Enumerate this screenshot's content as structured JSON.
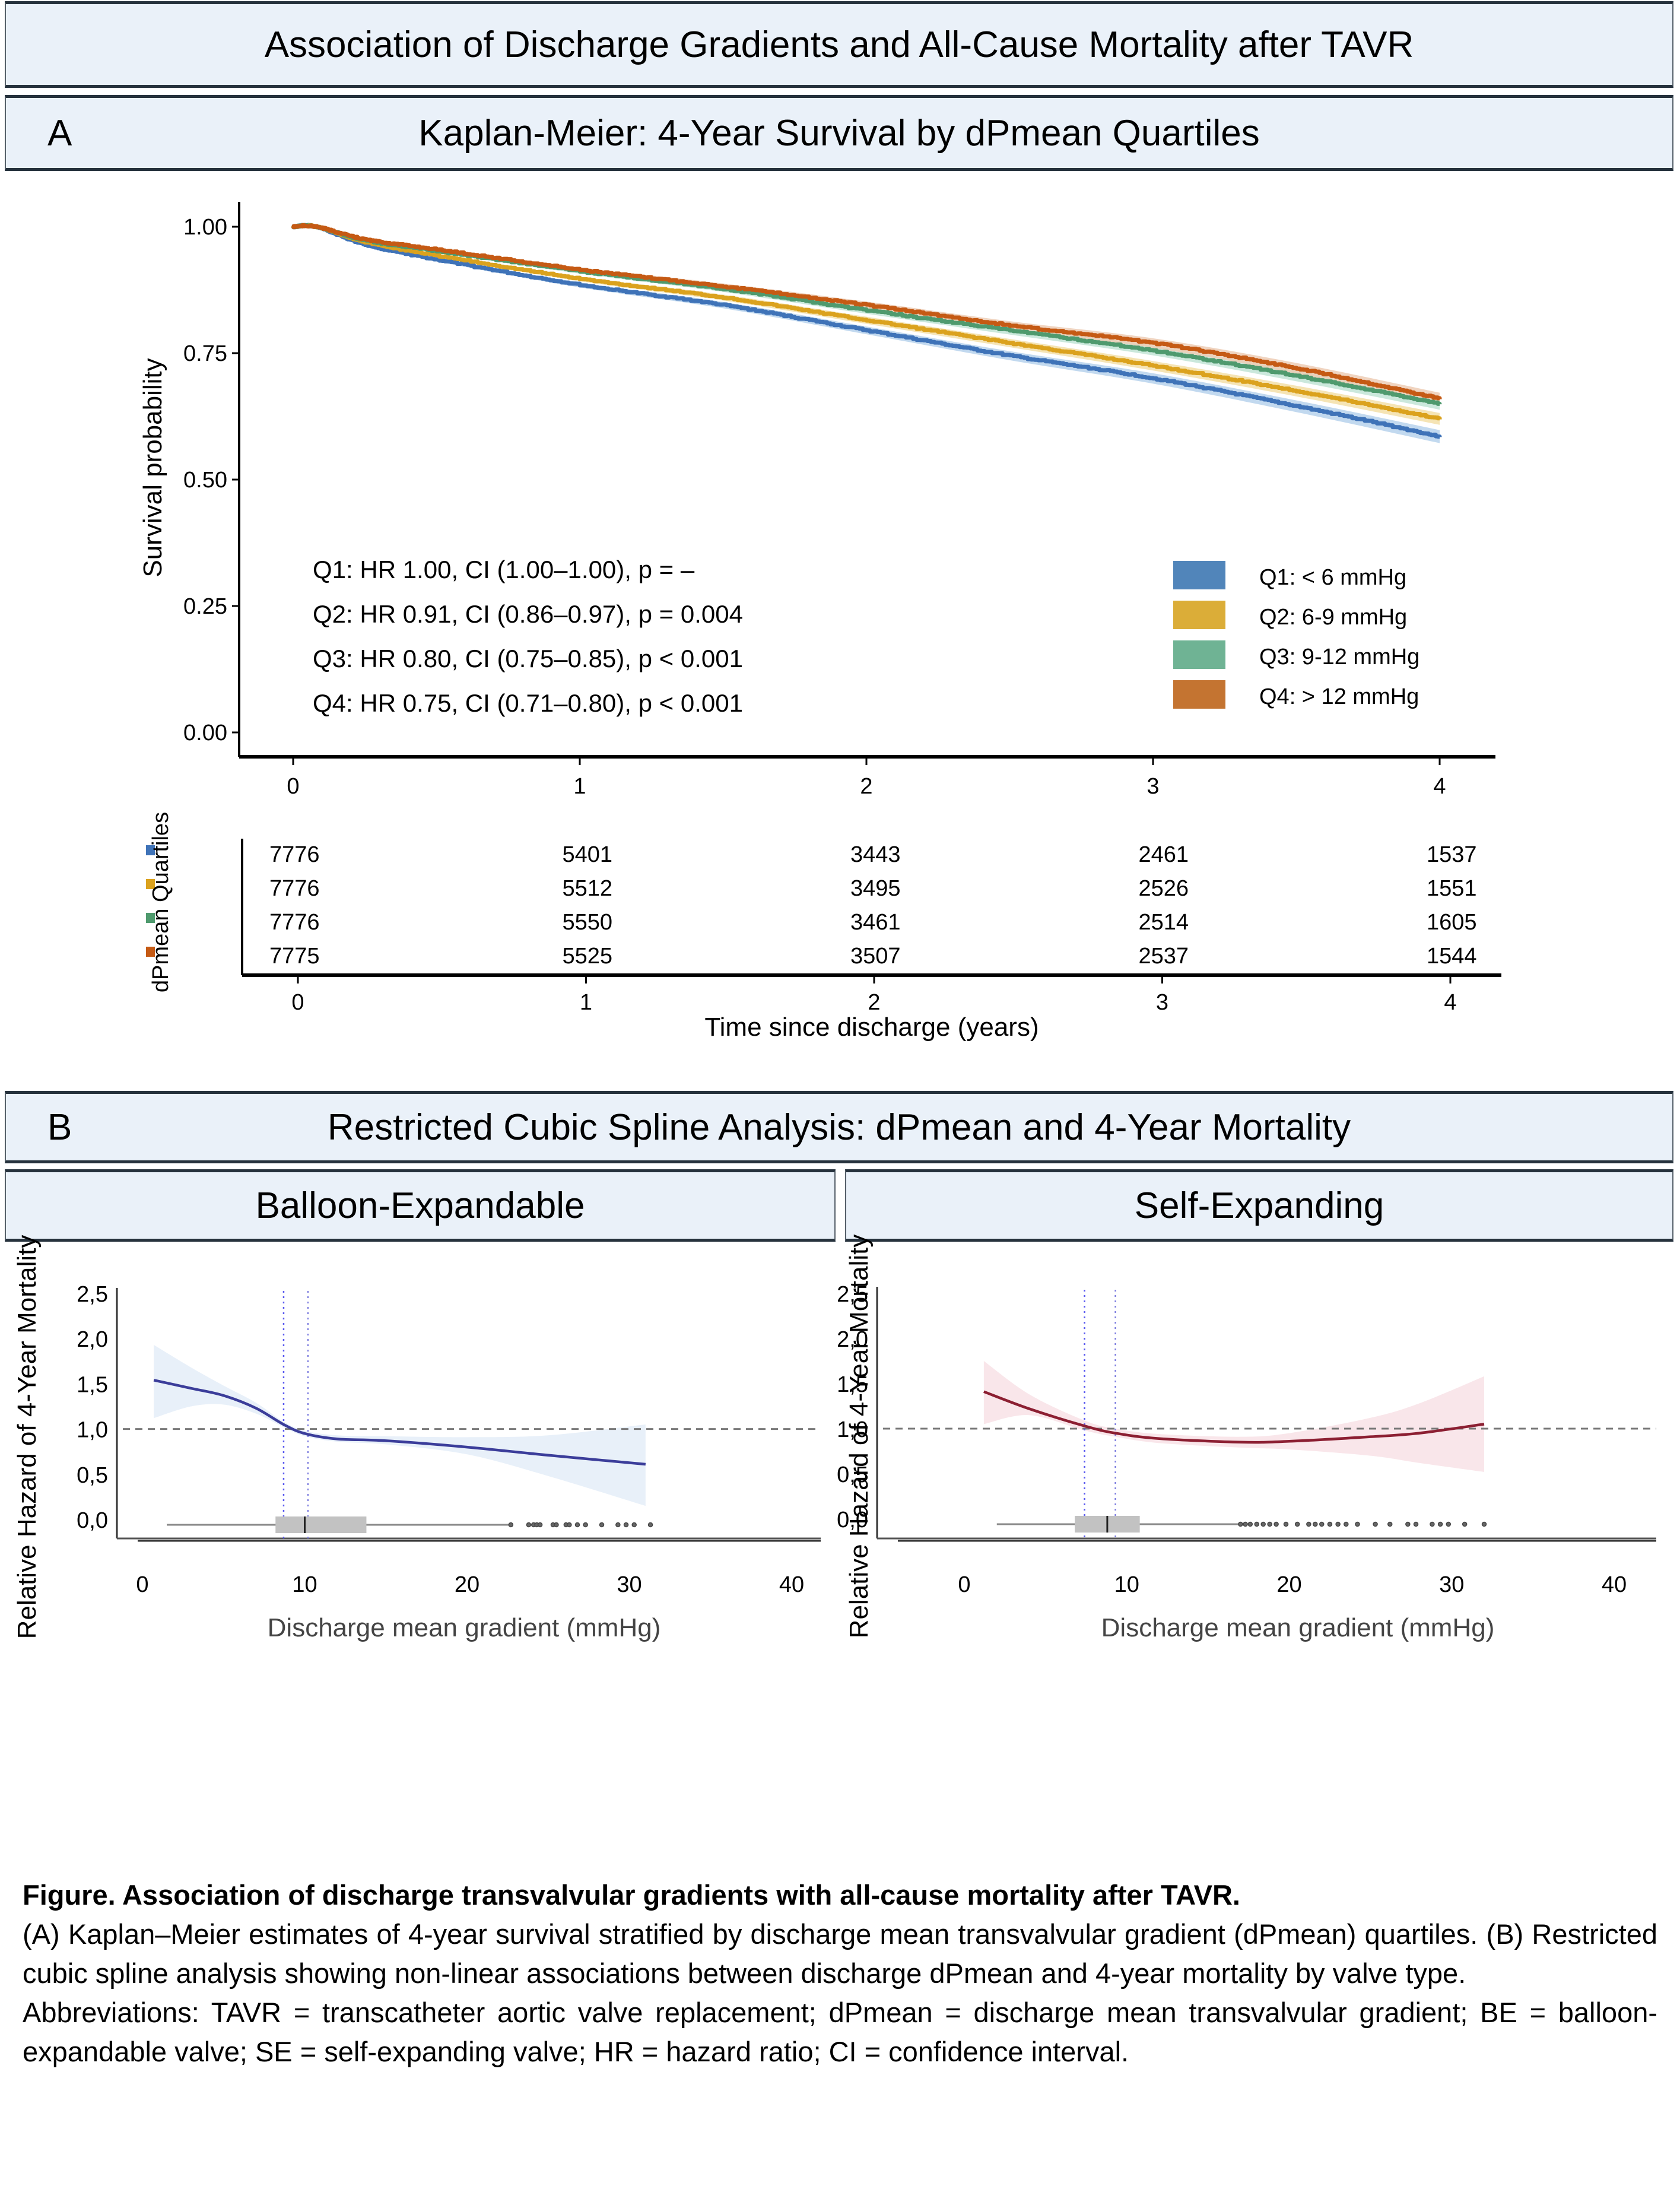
{
  "main_title": "Association of Discharge Gradients and All-Cause Mortality after TAVR",
  "panel_a": {
    "letter": "A",
    "title": "Kaplan-Meier: 4-Year Survival by dPmean Quartiles"
  },
  "panel_b": {
    "letter": "B",
    "title": "Restricted Cubic Spline Analysis: dPmean and 4-Year Mortality",
    "subpanels": [
      "Balloon-Expandable",
      "Self-Expanding"
    ]
  },
  "chart_data": [
    {
      "type": "line",
      "title": "Kaplan-Meier: 4-Year Survival by dPmean Quartiles",
      "xlabel": "Time since discharge (years)",
      "ylabel": "Survival probability",
      "xlim": [
        0,
        4
      ],
      "ylim": [
        0,
        1
      ],
      "xticks": [
        "0",
        "1",
        "2",
        "3",
        "4"
      ],
      "yticks": [
        "0.00",
        "0.25",
        "0.50",
        "0.75",
        "1.00"
      ],
      "grid": false,
      "legend_position": "bottom-right",
      "series": [
        {
          "name": "Q1: < 6 mmHg",
          "color": "#3f73b8",
          "ci_color": "#b7d2ec",
          "x": [
            0,
            0.08,
            0.25,
            0.5,
            1,
            1.5,
            2,
            2.5,
            3,
            3.5,
            4
          ],
          "y": [
            1.0,
            1.0,
            0.965,
            0.935,
            0.885,
            0.845,
            0.795,
            0.745,
            0.7,
            0.645,
            0.585
          ]
        },
        {
          "name": "Q2: 6-9 mmHg",
          "color": "#dba21e",
          "ci_color": "#f3dfa8",
          "x": [
            0,
            0.08,
            0.25,
            0.5,
            1,
            1.5,
            2,
            2.5,
            3,
            3.5,
            4
          ],
          "y": [
            1.0,
            1.0,
            0.97,
            0.943,
            0.897,
            0.86,
            0.815,
            0.77,
            0.725,
            0.675,
            0.62
          ]
        },
        {
          "name": "Q3: 9-12 mmHg",
          "color": "#4f9a6e",
          "ci_color": "#c2e4d6",
          "x": [
            0,
            0.08,
            0.25,
            0.5,
            1,
            1.5,
            2,
            2.5,
            3,
            3.5,
            4
          ],
          "y": [
            1.0,
            1.0,
            0.973,
            0.952,
            0.912,
            0.877,
            0.835,
            0.795,
            0.755,
            0.705,
            0.65
          ]
        },
        {
          "name": "Q4: > 12 mmHg",
          "color": "#c55a14",
          "ci_color": "#edcdb5",
          "x": [
            0,
            0.08,
            0.25,
            0.5,
            1,
            1.5,
            2,
            2.5,
            3,
            3.5,
            4
          ],
          "y": [
            1.0,
            1.0,
            0.975,
            0.955,
            0.915,
            0.882,
            0.845,
            0.805,
            0.77,
            0.72,
            0.66
          ]
        }
      ],
      "legend": [
        {
          "label": "Q1: < 6 mmHg",
          "color": "#5185ba"
        },
        {
          "label": "Q2: 6-9 mmHg",
          "color": "#dbad38"
        },
        {
          "label": "Q3: 9-12 mmHg",
          "color": "#6fb394"
        },
        {
          "label": "Q4: > 12 mmHg",
          "color": "#c47431"
        }
      ],
      "annotations": [
        "Q1: HR 1.00, CI (1.00–1.00), p = –",
        "Q2: HR 0.91, CI (0.86–0.97), p = 0.004",
        "Q3: HR 0.80, CI (0.75–0.85), p < 0.001",
        "Q4: HR 0.75, CI (0.71–0.80), p < 0.001"
      ],
      "risk_table": {
        "ylabel": "dPmean Quartiles",
        "times": [
          "0",
          "1",
          "2",
          "3",
          "4"
        ],
        "rows": [
          {
            "color": "#3f73b8",
            "values": [
              "7776",
              "5401",
              "3443",
              "2461",
              "1537"
            ]
          },
          {
            "color": "#dba21e",
            "values": [
              "7776",
              "5512",
              "3495",
              "2526",
              "1551"
            ]
          },
          {
            "color": "#4f9a6e",
            "values": [
              "7776",
              "5550",
              "3461",
              "2514",
              "1605"
            ]
          },
          {
            "color": "#c55a14",
            "values": [
              "7775",
              "5525",
              "3507",
              "2537",
              "1544"
            ]
          }
        ]
      }
    },
    {
      "type": "line",
      "title": "Balloon-Expandable",
      "xlabel": "Discharge mean gradient (mmHg)",
      "ylabel": "Relative Hazard of 4-Year Mortality",
      "xlim": [
        0,
        40
      ],
      "ylim": [
        0,
        2.5
      ],
      "xticks": [
        "0",
        "10",
        "20",
        "30",
        "40"
      ],
      "yticks": [
        "0,0",
        "0,5",
        "1,0",
        "1,5",
        "2,0",
        "2,5"
      ],
      "reference_line_y": 1.0,
      "vertical_lines_x": [
        8.7,
        10.2
      ],
      "line_color": "#3b3d9a",
      "ci_color": "#e8f0f9",
      "x": [
        0.7,
        3,
        5,
        7,
        8.7,
        10,
        12,
        15,
        20,
        25,
        31
      ],
      "y": [
        1.54,
        1.45,
        1.37,
        1.23,
        1.05,
        0.95,
        0.89,
        0.87,
        0.8,
        0.71,
        0.61
      ],
      "ci_upper": [
        1.93,
        1.68,
        1.48,
        1.29,
        1.08,
        0.98,
        0.93,
        0.92,
        0.91,
        0.93,
        1.05
      ],
      "ci_lower": [
        1.12,
        1.25,
        1.27,
        1.17,
        1.02,
        0.92,
        0.86,
        0.83,
        0.72,
        0.48,
        0.15
      ],
      "boxplot": {
        "whisker_low": 1.5,
        "q1": 8.2,
        "median": 10.0,
        "q3": 13.8,
        "whisker_high": 22.7,
        "outliers": [
          22.7,
          23.8,
          24.1,
          24.3,
          24.5,
          25.3,
          25.5,
          26.1,
          26.3,
          26.8,
          27.3,
          28.3,
          29.3,
          29.8,
          30.3,
          31.3
        ]
      }
    },
    {
      "type": "line",
      "title": "Self-Expanding",
      "xlabel": "Discharge mean gradient (mmHg)",
      "ylabel": "Relative Hazard of 4-Year Mortality",
      "xlim": [
        0,
        40
      ],
      "ylim": [
        0,
        2.5
      ],
      "xticks": [
        "0",
        "10",
        "20",
        "30",
        "40"
      ],
      "yticks": [
        "0,0",
        "0,5",
        "1,0",
        "1,5",
        "2,0",
        "2,5"
      ],
      "reference_line_y": 1.0,
      "vertical_lines_x": [
        7.4,
        9.3
      ],
      "line_color": "#8c1f32",
      "ci_color": "#f9e6ea",
      "x": [
        1.2,
        4,
        7.4,
        9.3,
        12,
        17,
        20,
        25,
        28,
        32
      ],
      "y": [
        1.41,
        1.22,
        1.03,
        0.95,
        0.89,
        0.85,
        0.86,
        0.91,
        0.95,
        1.05
      ],
      "ci_upper": [
        1.75,
        1.38,
        1.09,
        1.0,
        0.94,
        0.91,
        0.95,
        1.12,
        1.28,
        1.58
      ],
      "ci_lower": [
        1.05,
        1.15,
        0.98,
        0.91,
        0.84,
        0.79,
        0.77,
        0.7,
        0.62,
        0.52
      ],
      "boxplot": {
        "whisker_low": 2.0,
        "q1": 6.8,
        "median": 8.8,
        "q3": 10.8,
        "whisker_high": 17.0,
        "outliers": [
          17.0,
          17.3,
          17.6,
          18.0,
          18.4,
          18.8,
          19.2,
          19.8,
          20.5,
          21.2,
          21.6,
          22.0,
          22.5,
          23.0,
          23.5,
          24.2,
          25.3,
          26.2,
          27.3,
          27.8,
          28.8,
          29.3,
          29.8,
          30.8,
          32.0
        ]
      }
    }
  ],
  "caption": {
    "title": "Figure. Association of discharge transvalvular gradients with all-cause mortality after TAVR.",
    "body": "(A) Kaplan–Meier estimates of 4-year survival stratified by discharge mean transvalvular gradient (dPmean) quartiles. (B) Restricted cubic spline analysis showing non-linear associations between discharge dPmean and 4-year mortality by valve type.",
    "abbreviations": "Abbreviations: TAVR = transcatheter aortic valve replacement; dPmean = discharge mean transvalvular gradient; BE = balloon-expandable valve; SE = self-expanding valve; HR = hazard ratio; CI = confidence interval."
  }
}
